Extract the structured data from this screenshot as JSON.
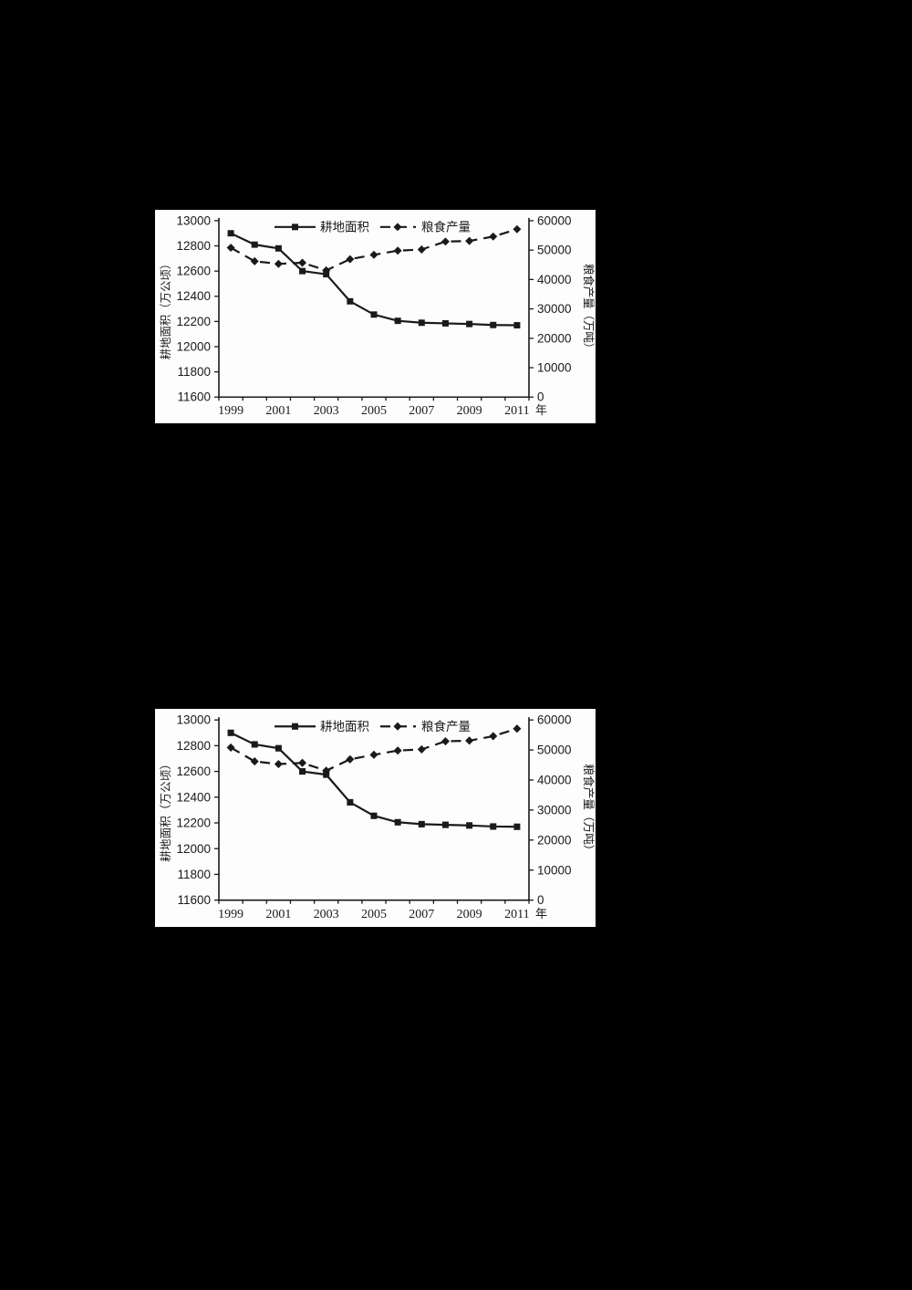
{
  "page": {
    "background_color": "#000000",
    "panel_color": "#fdfdfd",
    "ink_color": "#1a1a1a"
  },
  "chart_data": [
    {
      "type": "line",
      "title": "",
      "x_axis": {
        "years": [
          1999,
          2000,
          2001,
          2002,
          2003,
          2004,
          2005,
          2006,
          2007,
          2008,
          2009,
          2010,
          2011
        ],
        "tick_labels": [
          "1999",
          "2001",
          "2003",
          "2005",
          "2007",
          "2009",
          "2011"
        ],
        "unit_suffix": "年"
      },
      "left_axis": {
        "title": "耕地面积（万公顷）",
        "min": 11600,
        "max": 13000,
        "tick_labels": [
          "13000",
          "12800",
          "12600",
          "12400",
          "12200",
          "12000",
          "11800",
          "11600"
        ]
      },
      "right_axis": {
        "title": "粮食产量（万吨）",
        "min": 0,
        "max": 60000,
        "tick_labels": [
          "60000",
          "50000",
          "40000",
          "30000",
          "20000",
          "10000",
          "0"
        ]
      },
      "legend": {
        "position": "top-center-inside",
        "entries": [
          "耕地面积",
          "粮食产量"
        ]
      },
      "grid": false,
      "series": [
        {
          "name": "耕地面积",
          "axis": "left",
          "line": "solid",
          "marker": "square",
          "values": [
            12900,
            12810,
            12780,
            12600,
            12575,
            12360,
            12255,
            12205,
            12190,
            12185,
            12180,
            12172,
            12170
          ]
        },
        {
          "name": "粮食产量",
          "axis": "right",
          "line": "dashed",
          "marker": "diamond",
          "values": [
            50800,
            46200,
            45300,
            45700,
            43100,
            46900,
            48400,
            49800,
            50200,
            52900,
            53100,
            54600,
            57100
          ]
        }
      ]
    },
    {
      "type": "line",
      "title": "",
      "x_axis": {
        "years": [
          1999,
          2000,
          2001,
          2002,
          2003,
          2004,
          2005,
          2006,
          2007,
          2008,
          2009,
          2010,
          2011
        ],
        "tick_labels": [
          "1999",
          "2001",
          "2003",
          "2005",
          "2007",
          "2009",
          "2011"
        ],
        "unit_suffix": "年"
      },
      "left_axis": {
        "title": "耕地面积（万公顷）",
        "min": 11600,
        "max": 13000,
        "tick_labels": [
          "13000",
          "12800",
          "12600",
          "12400",
          "12200",
          "12000",
          "11800",
          "11600"
        ]
      },
      "right_axis": {
        "title": "粮食产量（万吨）",
        "min": 0,
        "max": 60000,
        "tick_labels": [
          "60000",
          "50000",
          "40000",
          "30000",
          "20000",
          "10000",
          "0"
        ]
      },
      "legend": {
        "position": "top-center-inside",
        "entries": [
          "耕地面积",
          "粮食产量"
        ]
      },
      "grid": false,
      "series": [
        {
          "name": "耕地面积",
          "axis": "left",
          "line": "solid",
          "marker": "square",
          "values": [
            12900,
            12810,
            12780,
            12600,
            12575,
            12360,
            12255,
            12205,
            12190,
            12185,
            12180,
            12172,
            12170
          ]
        },
        {
          "name": "粮食产量",
          "axis": "right",
          "line": "dashed",
          "marker": "diamond",
          "values": [
            50800,
            46200,
            45300,
            45700,
            43100,
            46900,
            48400,
            49800,
            50200,
            52900,
            53100,
            54600,
            57100
          ]
        }
      ]
    }
  ]
}
